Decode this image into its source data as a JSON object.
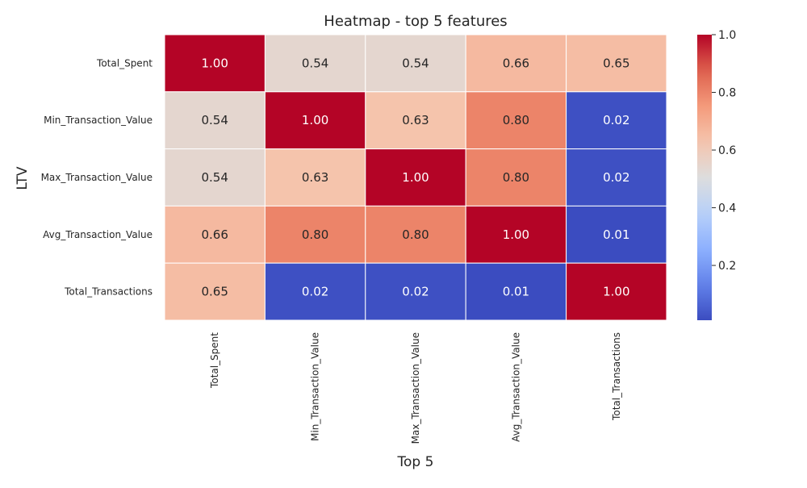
{
  "chart_data": {
    "type": "heatmap",
    "title": "Heatmap - top 5 features",
    "xlabel": "Top 5",
    "ylabel": "LTV",
    "x_categories": [
      "Total_Spent",
      "Min_Transaction_Value",
      "Max_Transaction_Value",
      "Avg_Transaction_Value",
      "Total_Transactions"
    ],
    "y_categories": [
      "Total_Spent",
      "Min_Transaction_Value",
      "Max_Transaction_Value",
      "Avg_Transaction_Value",
      "Total_Transactions"
    ],
    "values": [
      [
        1.0,
        0.54,
        0.54,
        0.66,
        0.65
      ],
      [
        0.54,
        1.0,
        0.63,
        0.8,
        0.02
      ],
      [
        0.54,
        0.63,
        1.0,
        0.8,
        0.02
      ],
      [
        0.66,
        0.8,
        0.8,
        1.0,
        0.01
      ],
      [
        0.65,
        0.02,
        0.02,
        0.01,
        1.0
      ]
    ],
    "annotation_format": "0.00",
    "colormap": "coolwarm",
    "colorbar": {
      "range": [
        0.01,
        1.0
      ],
      "ticks": [
        0.2,
        0.4,
        0.6,
        0.8,
        1.0
      ],
      "tick_labels": [
        "0.2",
        "0.4",
        "0.6",
        "0.8",
        "1.0"
      ]
    },
    "grid": false,
    "cell_border_color": "#ffffff"
  }
}
